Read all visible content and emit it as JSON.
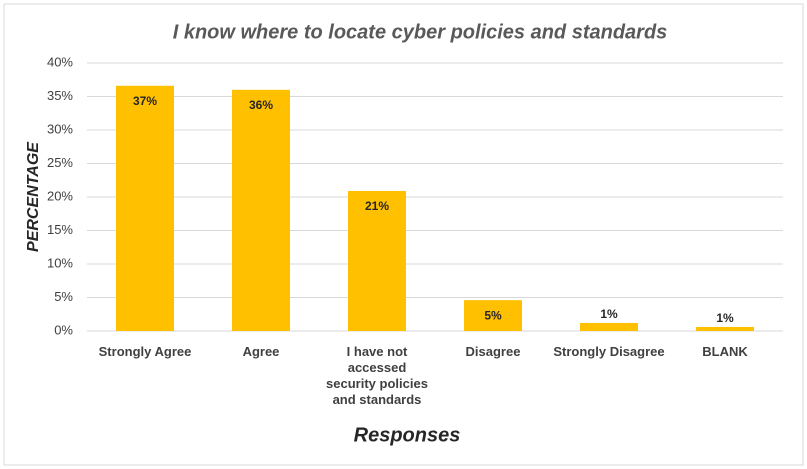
{
  "chart_data": {
    "type": "bar",
    "title": "I know where to locate cyber policies and standards",
    "x_label": "Responses",
    "y_label": "PERCENTAGE",
    "categories": [
      "Strongly Agree",
      "Agree",
      "I have not accessed security policies and standards",
      "Disagree",
      "Strongly Disagree",
      "BLANK"
    ],
    "values": [
      36.6,
      36.0,
      20.9,
      4.6,
      1.2,
      0.6
    ],
    "value_labels": [
      "37%",
      "36%",
      "21%",
      "5%",
      "1%",
      "1%"
    ],
    "color": "#ffc000",
    "ylim": [
      0,
      40
    ],
    "yticks": [
      {
        "value": 0,
        "label": "0%"
      },
      {
        "value": 5,
        "label": "5%"
      },
      {
        "value": 10,
        "label": "10%"
      },
      {
        "value": 15,
        "label": "15%"
      },
      {
        "value": 20,
        "label": "20%"
      },
      {
        "value": 25,
        "label": "25%"
      },
      {
        "value": 30,
        "label": "30%"
      },
      {
        "value": 35,
        "label": "35%"
      },
      {
        "value": 40,
        "label": "40%"
      }
    ],
    "grid": true
  }
}
